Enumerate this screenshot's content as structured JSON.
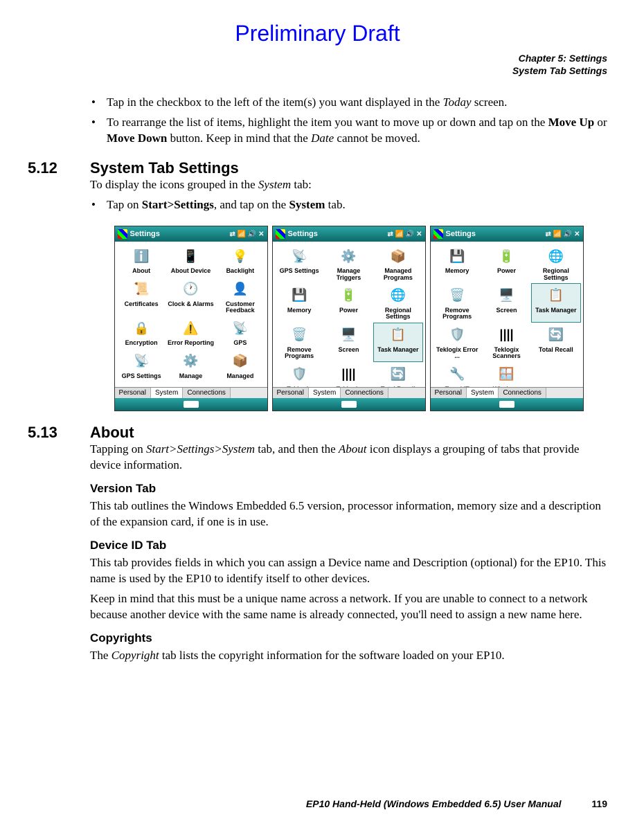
{
  "draft_banner": "Preliminary Draft",
  "chapter": {
    "line1": "Chapter 5:  Settings",
    "line2": "System Tab Settings"
  },
  "intro_bullets": [
    {
      "pre": "Tap in the checkbox to the left of the item(s) you want displayed in the ",
      "it1": "Today",
      "post": " screen."
    },
    {
      "pre": "To rearrange the list of items, highlight the item you want to move up or down and tap on the ",
      "b1": "Move Up",
      "mid1": " or ",
      "b2": "Move Down",
      "mid2": " button. Keep in mind that the ",
      "it1": "Date",
      "post": " cannot be moved."
    }
  ],
  "s512": {
    "num": "5.12",
    "title": "System Tab Settings",
    "desc_pre": "To display the icons grouped in the ",
    "desc_it": "System",
    "desc_post": " tab:",
    "bullet_pre": "Tap on ",
    "bullet_b1": "Start>Settings",
    "bullet_mid": ", and tap on the ",
    "bullet_b2": "System",
    "bullet_post": " tab."
  },
  "screenshots": {
    "titlebar": "Settings",
    "tabs": [
      "Personal",
      "System",
      "Connections"
    ],
    "status_icons": "⇄ 📶 🔊 ✕",
    "screens": [
      {
        "selected_index": -1,
        "icons": [
          {
            "g": "ℹ️",
            "l": "About"
          },
          {
            "g": "📱",
            "l": "About Device"
          },
          {
            "g": "💡",
            "l": "Backlight"
          },
          {
            "g": "📜",
            "l": "Certificates"
          },
          {
            "g": "🕐",
            "l": "Clock & Alarms"
          },
          {
            "g": "👤",
            "l": "Customer Feedback"
          },
          {
            "g": "🔒",
            "l": "Encryption"
          },
          {
            "g": "⚠️",
            "l": "Error Reporting"
          },
          {
            "g": "📡",
            "l": "GPS"
          },
          {
            "g": "📡",
            "l": "GPS Settings"
          },
          {
            "g": "⚙️",
            "l": "Manage"
          },
          {
            "g": "📦",
            "l": "Managed"
          }
        ]
      },
      {
        "selected_index": 8,
        "icons": [
          {
            "g": "📡",
            "l": "GPS Settings"
          },
          {
            "g": "⚙️",
            "l": "Manage Triggers"
          },
          {
            "g": "📦",
            "l": "Managed Programs"
          },
          {
            "g": "💾",
            "l": "Memory"
          },
          {
            "g": "🔋",
            "l": "Power"
          },
          {
            "g": "🌐",
            "l": "Regional Settings"
          },
          {
            "g": "🗑️",
            "l": "Remove Programs"
          },
          {
            "g": "🖥️",
            "l": "Screen"
          },
          {
            "g": "📋",
            "l": "Task Manager"
          },
          {
            "g": "🛡️",
            "l": "Teklogix"
          },
          {
            "g": "||||",
            "l": "Teklogix"
          },
          {
            "g": "🔄",
            "l": "Total Recall"
          }
        ]
      },
      {
        "selected_index": 5,
        "icons": [
          {
            "g": "💾",
            "l": "Memory"
          },
          {
            "g": "🔋",
            "l": "Power"
          },
          {
            "g": "🌐",
            "l": "Regional Settings"
          },
          {
            "g": "🗑️",
            "l": "Remove Programs"
          },
          {
            "g": "🖥️",
            "l": "Screen"
          },
          {
            "g": "📋",
            "l": "Task Manager"
          },
          {
            "g": "🛡️",
            "l": "Teklogix Error ..."
          },
          {
            "g": "||||",
            "l": "Teklogix Scanners"
          },
          {
            "g": "🔄",
            "l": "Total Recall"
          },
          {
            "g": "🔧",
            "l": "TweakIT Settings"
          },
          {
            "g": "🪟",
            "l": "Windows Update"
          },
          {
            "g": "",
            "l": ""
          }
        ]
      }
    ]
  },
  "s513": {
    "num": "5.13",
    "title": "About",
    "desc_pre": "Tapping on ",
    "desc_it1": "Start>Settings>System",
    "desc_mid": " tab, and then the ",
    "desc_it2": "About",
    "desc_post": " icon displays a grouping of tabs that provide device information.",
    "version": {
      "h": "Version Tab",
      "p": "This tab outlines the Windows Embedded 6.5 version, processor information, memory size and a description of the expansion card, if one is in use."
    },
    "deviceid": {
      "h": "Device ID Tab",
      "p1": "This tab provides fields in which you can assign a Device name and Description (optional) for the EP10. This name is used by the EP10 to identify itself to other devices.",
      "p2": "Keep in mind that this must be a unique name across a network. If you are unable to connect to a network because another device with the same name is already connected, you'll need to assign a new name here."
    },
    "copyrights": {
      "h": "Copyrights",
      "p_pre": "The ",
      "p_it": "Copyright",
      "p_post": " tab lists the copyright information for the software loaded on your EP10."
    }
  },
  "footer": {
    "title": "EP10 Hand-Held (Windows Embedded 6.5) User Manual",
    "page": "119"
  },
  "colors": {
    "draft": "#0000ff",
    "teal_top": "#2aa5a5",
    "teal_bot": "#0d6868",
    "text": "#000000",
    "bg": "#ffffff"
  }
}
